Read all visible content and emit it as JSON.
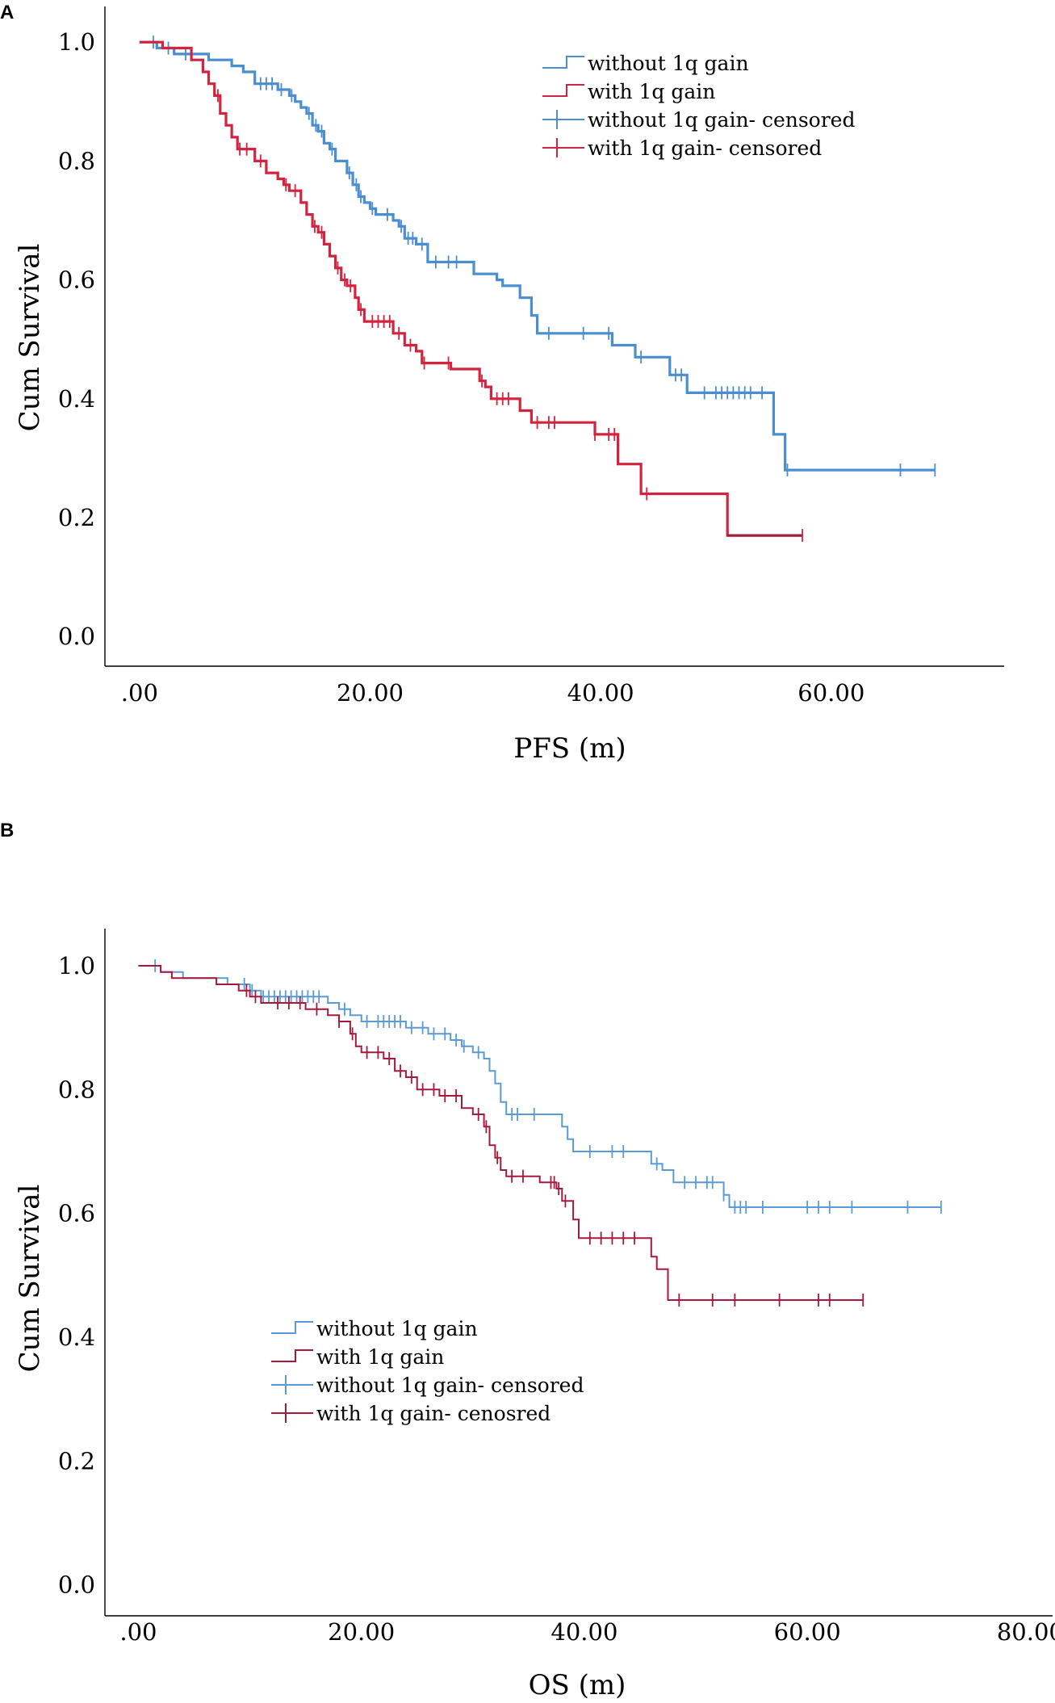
{
  "figure": {
    "panel_a_label": "A",
    "panel_b_label": "B"
  },
  "colors": {
    "without": "#4a8ed0",
    "with_pfs": "#d2233f",
    "with_pfs_tail": "#a11e34",
    "without_os": "#5b9bd5",
    "with_os": "#a8183a"
  },
  "chart_data": [
    {
      "type": "line",
      "subtype": "kaplan-meier",
      "xlabel": "PFS (m)",
      "ylabel": "Cum Survival",
      "xlim": [
        -3,
        75
      ],
      "ylim": [
        -0.05,
        1.06
      ],
      "x_ticks": [
        0,
        20,
        40,
        60
      ],
      "x_tick_labels": [
        ".00",
        "20.00",
        "40.00",
        "60.00"
      ],
      "y_ticks": [
        0.0,
        0.2,
        0.4,
        0.6,
        0.8,
        1.0
      ],
      "y_tick_labels": [
        "0.0",
        "0.2",
        "0.4",
        "0.6",
        "0.8",
        "1.0"
      ],
      "legend": {
        "position": "top-right",
        "entries": [
          "without 1q gain",
          "with 1q gain",
          "without 1q gain- censored",
          "with 1q gain- censored"
        ]
      },
      "series": [
        {
          "name": "without 1q gain",
          "color_key": "without",
          "steps": [
            [
              0,
              1.0
            ],
            [
              1.5,
              0.99
            ],
            [
              3,
              0.98
            ],
            [
              6,
              0.97
            ],
            [
              8,
              0.96
            ],
            [
              9,
              0.95
            ],
            [
              10,
              0.93
            ],
            [
              12,
              0.92
            ],
            [
              13,
              0.91
            ],
            [
              13.5,
              0.9
            ],
            [
              14,
              0.89
            ],
            [
              14.5,
              0.88
            ],
            [
              15,
              0.86
            ],
            [
              15.5,
              0.85
            ],
            [
              16,
              0.83
            ],
            [
              16.5,
              0.82
            ],
            [
              17,
              0.8
            ],
            [
              18,
              0.78
            ],
            [
              18.5,
              0.76
            ],
            [
              19,
              0.74
            ],
            [
              19.5,
              0.73
            ],
            [
              20,
              0.72
            ],
            [
              20.5,
              0.71
            ],
            [
              22,
              0.7
            ],
            [
              22.5,
              0.69
            ],
            [
              23,
              0.67
            ],
            [
              24,
              0.66
            ],
            [
              25,
              0.63
            ],
            [
              29,
              0.61
            ],
            [
              31,
              0.6
            ],
            [
              31.5,
              0.59
            ],
            [
              33,
              0.57
            ],
            [
              34,
              0.54
            ],
            [
              34.5,
              0.51
            ],
            [
              41,
              0.49
            ],
            [
              43,
              0.47
            ],
            [
              46,
              0.44
            ],
            [
              47.5,
              0.41
            ],
            [
              55,
              0.34
            ],
            [
              56,
              0.28
            ],
            [
              69,
              0.28
            ]
          ],
          "censored_x": [
            1.2,
            2.5,
            4,
            10.5,
            11,
            11.5,
            12.3,
            13.2,
            14.7,
            15.3,
            15.8,
            16.7,
            18.2,
            18.8,
            19.2,
            20.2,
            21.5,
            22.7,
            23.3,
            23.7,
            24.5,
            25.7,
            26.8,
            27.5,
            35.5,
            38.5,
            40.7,
            43.5,
            46.5,
            47,
            49,
            50,
            50.5,
            51,
            51.5,
            52,
            52.5,
            53,
            54,
            56.2,
            66,
            69
          ]
        },
        {
          "name": "with 1q gain",
          "color_key": "with_pfs",
          "tail_color_key": "with_pfs_tail",
          "steps": [
            [
              0,
              1.0
            ],
            [
              2,
              0.99
            ],
            [
              4.5,
              0.97
            ],
            [
              5.5,
              0.95
            ],
            [
              6,
              0.93
            ],
            [
              6.5,
              0.91
            ],
            [
              7,
              0.88
            ],
            [
              7.5,
              0.86
            ],
            [
              8,
              0.84
            ],
            [
              8.5,
              0.82
            ],
            [
              10,
              0.8
            ],
            [
              11,
              0.78
            ],
            [
              12,
              0.77
            ],
            [
              12.5,
              0.76
            ],
            [
              13,
              0.75
            ],
            [
              14,
              0.73
            ],
            [
              14.5,
              0.71
            ],
            [
              15,
              0.69
            ],
            [
              15.5,
              0.68
            ],
            [
              16,
              0.66
            ],
            [
              16.5,
              0.64
            ],
            [
              17,
              0.62
            ],
            [
              17.5,
              0.6
            ],
            [
              18,
              0.59
            ],
            [
              18.7,
              0.57
            ],
            [
              19,
              0.55
            ],
            [
              19.5,
              0.53
            ],
            [
              22,
              0.51
            ],
            [
              23,
              0.49
            ],
            [
              24,
              0.48
            ],
            [
              24.5,
              0.46
            ],
            [
              27,
              0.45
            ],
            [
              29.5,
              0.43
            ],
            [
              30,
              0.42
            ],
            [
              30.5,
              0.4
            ],
            [
              33,
              0.38
            ],
            [
              34,
              0.36
            ],
            [
              39.5,
              0.34
            ],
            [
              41.5,
              0.29
            ],
            [
              43.5,
              0.24
            ],
            [
              51,
              0.17
            ],
            [
              57.5,
              0.17
            ]
          ],
          "censored_x": [
            6.8,
            8.7,
            9.3,
            10.5,
            12.7,
            13.5,
            15.2,
            15.8,
            17.2,
            17.8,
            18.3,
            19.2,
            20.2,
            20.7,
            21.2,
            21.7,
            22.5,
            23.5,
            24.7,
            26.8,
            29.7,
            31,
            31.5,
            32,
            34.5,
            35.5,
            36,
            39.5,
            40.7,
            41.2,
            44,
            57.5
          ]
        }
      ]
    },
    {
      "type": "line",
      "subtype": "kaplan-meier",
      "xlabel": "OS (m)",
      "ylabel": "Cum Survival",
      "xlim": [
        -3,
        82
      ],
      "ylim": [
        -0.05,
        1.06
      ],
      "x_ticks": [
        0,
        20,
        40,
        60,
        80
      ],
      "x_tick_labels": [
        ".00",
        "20.00",
        "40.00",
        "60.00",
        "80.00"
      ],
      "y_ticks": [
        0.0,
        0.2,
        0.4,
        0.6,
        0.8,
        1.0
      ],
      "y_tick_labels": [
        "0.0",
        "0.2",
        "0.4",
        "0.6",
        "0.8",
        "1.0"
      ],
      "legend": {
        "position": "lower-left",
        "entries": [
          "without 1q gain",
          "with 1q gain",
          "without 1q gain- censored",
          "with 1q gain- cenosred"
        ]
      },
      "series": [
        {
          "name": "without 1q gain",
          "color_key": "without_os",
          "steps": [
            [
              0,
              1.0
            ],
            [
              2,
              0.99
            ],
            [
              4,
              0.98
            ],
            [
              8,
              0.97
            ],
            [
              10,
              0.96
            ],
            [
              11,
              0.95
            ],
            [
              17,
              0.94
            ],
            [
              18,
              0.93
            ],
            [
              19,
              0.92
            ],
            [
              20,
              0.91
            ],
            [
              24,
              0.9
            ],
            [
              26,
              0.89
            ],
            [
              28,
              0.88
            ],
            [
              29,
              0.87
            ],
            [
              30,
              0.86
            ],
            [
              31,
              0.85
            ],
            [
              31.5,
              0.83
            ],
            [
              32,
              0.81
            ],
            [
              32.5,
              0.78
            ],
            [
              33,
              0.76
            ],
            [
              38,
              0.74
            ],
            [
              38.5,
              0.72
            ],
            [
              39,
              0.7
            ],
            [
              46,
              0.68
            ],
            [
              47,
              0.67
            ],
            [
              48,
              0.65
            ],
            [
              52.5,
              0.63
            ],
            [
              53,
              0.61
            ],
            [
              72,
              0.61
            ]
          ],
          "censored_x": [
            1.5,
            9.5,
            10.2,
            11.2,
            11.7,
            12.2,
            12.7,
            13.2,
            13.7,
            14.2,
            14.7,
            15.2,
            15.7,
            16.2,
            18.5,
            20.5,
            21.5,
            22,
            22.5,
            23,
            23.5,
            24.5,
            25.5,
            26.5,
            27.5,
            28.5,
            29.2,
            30.5,
            33.5,
            34,
            35.5,
            40.5,
            42.5,
            43.5,
            46.5,
            49,
            50,
            51,
            51.5,
            52.5,
            53.5,
            54,
            54.5,
            56,
            60,
            61,
            62,
            64,
            69,
            72
          ]
        },
        {
          "name": "with 1q gain",
          "color_key": "with_os",
          "steps": [
            [
              0,
              1.0
            ],
            [
              2,
              0.99
            ],
            [
              3,
              0.98
            ],
            [
              7,
              0.97
            ],
            [
              9,
              0.96
            ],
            [
              10,
              0.95
            ],
            [
              11,
              0.94
            ],
            [
              15,
              0.93
            ],
            [
              17,
              0.92
            ],
            [
              18,
              0.91
            ],
            [
              19,
              0.89
            ],
            [
              19.5,
              0.87
            ],
            [
              20,
              0.86
            ],
            [
              22,
              0.85
            ],
            [
              23,
              0.83
            ],
            [
              24,
              0.82
            ],
            [
              25,
              0.8
            ],
            [
              27,
              0.79
            ],
            [
              29,
              0.77
            ],
            [
              30,
              0.76
            ],
            [
              31,
              0.74
            ],
            [
              31.5,
              0.71
            ],
            [
              32,
              0.69
            ],
            [
              32.5,
              0.67
            ],
            [
              33,
              0.66
            ],
            [
              36,
              0.65
            ],
            [
              37.5,
              0.64
            ],
            [
              38,
              0.62
            ],
            [
              39,
              0.59
            ],
            [
              39.5,
              0.56
            ],
            [
              46,
              0.53
            ],
            [
              46.5,
              0.51
            ],
            [
              47.5,
              0.46
            ],
            [
              65,
              0.46
            ]
          ],
          "censored_x": [
            9.7,
            10.5,
            12.5,
            13.5,
            14.5,
            16,
            18,
            19.2,
            20.5,
            21.5,
            22.5,
            23.5,
            24.5,
            25.5,
            26.5,
            27.5,
            28.5,
            30.5,
            31.2,
            32.2,
            33.5,
            34.5,
            37,
            37.3,
            37.7,
            38.3,
            40.5,
            41.5,
            42.5,
            43.5,
            44.5,
            48.5,
            51.5,
            53.5,
            57.5,
            61,
            62,
            65
          ]
        }
      ]
    }
  ]
}
